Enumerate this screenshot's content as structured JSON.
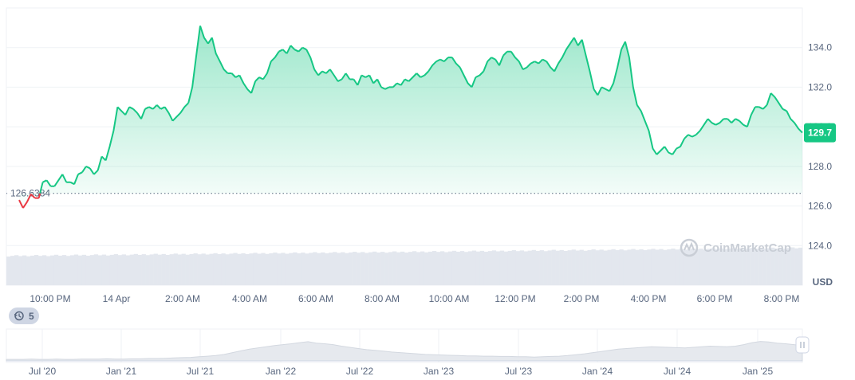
{
  "chart_data": {
    "type": "area",
    "currency_unit": "USD",
    "y_axis": {
      "ticks": [
        "124.0",
        "126.0",
        "128.0",
        "130.0",
        "132.0",
        "134.0"
      ],
      "ylim": [
        122.0,
        136.0
      ],
      "grid": true
    },
    "x_axis": {
      "ticks": [
        "10:00 PM",
        "14 Apr",
        "2:00 AM",
        "4:00 AM",
        "6:00 AM",
        "8:00 AM",
        "10:00 AM",
        "12:00 PM",
        "2:00 PM",
        "4:00 PM",
        "6:00 PM",
        "8:00 PM"
      ]
    },
    "reference_price": 126.6384,
    "reference_price_label": "126.6384",
    "current_price": 129.7,
    "current_price_label": "129.7",
    "colors": {
      "up": "#16c784",
      "down": "#ea3943",
      "grid": "#eff2f5"
    },
    "series": [
      {
        "values": [
          126.3,
          125.9,
          126.2,
          126.6,
          126.4,
          126.4,
          127.2,
          127.3,
          127.0,
          127.0,
          127.3,
          127.6,
          127.2,
          127.2,
          127.1,
          127.6,
          127.7,
          128.0,
          127.9,
          127.6,
          127.8,
          128.5,
          128.3,
          129.0,
          129.8,
          131.0,
          130.8,
          130.6,
          131.0,
          130.9,
          130.7,
          130.4,
          130.9,
          131.0,
          130.9,
          131.1,
          130.9,
          131.0,
          130.7,
          130.3,
          130.5,
          130.7,
          131.0,
          131.2,
          132.0,
          133.6,
          135.1,
          134.5,
          134.2,
          134.5,
          133.7,
          133.3,
          132.9,
          132.7,
          132.7,
          132.5,
          132.6,
          132.2,
          131.9,
          131.7,
          132.3,
          132.5,
          132.4,
          132.7,
          133.3,
          133.5,
          133.8,
          133.9,
          133.7,
          134.1,
          133.9,
          133.8,
          134.0,
          133.9,
          133.5,
          132.9,
          132.6,
          132.8,
          132.7,
          132.9,
          132.6,
          132.3,
          132.4,
          132.7,
          132.4,
          132.4,
          132.1,
          132.6,
          132.5,
          132.6,
          132.2,
          132.4,
          132.0,
          131.9,
          132.0,
          132.0,
          132.2,
          132.1,
          132.4,
          132.3,
          132.5,
          132.7,
          132.5,
          132.6,
          132.8,
          133.1,
          133.3,
          133.4,
          133.3,
          133.5,
          133.5,
          133.2,
          133.0,
          132.6,
          132.2,
          132.0,
          132.5,
          132.6,
          132.8,
          133.3,
          133.5,
          133.4,
          133.1,
          133.6,
          133.8,
          133.8,
          133.5,
          133.3,
          132.9,
          133.0,
          133.2,
          133.3,
          133.2,
          133.4,
          133.3,
          133.0,
          132.8,
          133.2,
          133.5,
          133.9,
          134.2,
          134.5,
          134.1,
          134.4,
          133.6,
          132.8,
          131.9,
          131.6,
          132.0,
          131.9,
          131.8,
          132.2,
          133.0,
          133.9,
          134.3,
          133.5,
          132.0,
          131.1,
          130.8,
          130.3,
          129.8,
          128.9,
          128.6,
          128.8,
          129.0,
          128.7,
          128.6,
          128.9,
          129.0,
          129.4,
          129.6,
          129.5,
          129.6,
          129.8,
          130.1,
          130.4,
          130.2,
          130.1,
          130.2,
          130.4,
          130.4,
          130.2,
          130.4,
          130.3,
          130.1,
          130.0,
          130.6,
          131.0,
          131.0,
          130.9,
          131.1,
          131.7,
          131.5,
          131.2,
          130.9,
          130.8,
          130.4,
          130.2,
          129.9,
          129.7
        ]
      }
    ]
  },
  "navigator": {
    "x_ticks": [
      "Jul '20",
      "Jan '21",
      "Jul '21",
      "Jan '22",
      "Jul '22",
      "Jan '23",
      "Jul '23",
      "Jan '24",
      "Jul '24",
      "Jan '25"
    ],
    "history": [
      0.05,
      0.05,
      0.05,
      0.06,
      0.05,
      0.05,
      0.06,
      0.05,
      0.05,
      0.06,
      0.06,
      0.06,
      0.07,
      0.06,
      0.06,
      0.07,
      0.07,
      0.08,
      0.08,
      0.09,
      0.1,
      0.11,
      0.12,
      0.14,
      0.16,
      0.18,
      0.22,
      0.28,
      0.34,
      0.4,
      0.44,
      0.48,
      0.52,
      0.55,
      0.58,
      0.62,
      0.65,
      0.6,
      0.58,
      0.55,
      0.5,
      0.46,
      0.42,
      0.38,
      0.36,
      0.33,
      0.3,
      0.28,
      0.26,
      0.24,
      0.22,
      0.21,
      0.2,
      0.19,
      0.18,
      0.17,
      0.17,
      0.16,
      0.16,
      0.15,
      0.15,
      0.14,
      0.14,
      0.13,
      0.14,
      0.15,
      0.16,
      0.18,
      0.21,
      0.24,
      0.28,
      0.32,
      0.36,
      0.4,
      0.42,
      0.44,
      0.46,
      0.48,
      0.47,
      0.46,
      0.45,
      0.44,
      0.46,
      0.48,
      0.5,
      0.49,
      0.48,
      0.5,
      0.55,
      0.62,
      0.66,
      0.64,
      0.6,
      0.58,
      0.55,
      0.52
    ]
  },
  "history_badge": {
    "icon": "history-icon",
    "count": "5"
  },
  "watermark": {
    "text": "CoinMarketCap",
    "icon": "coinmarketcap-logo-icon"
  }
}
